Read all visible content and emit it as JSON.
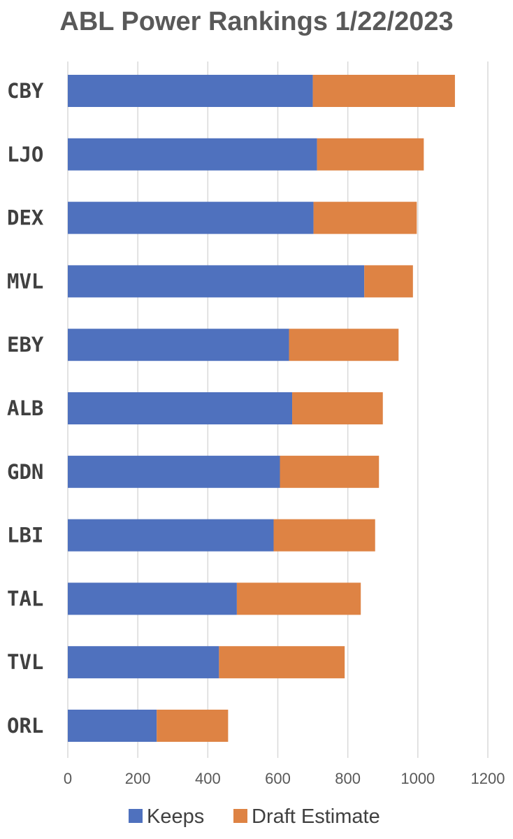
{
  "chart_data": {
    "type": "bar",
    "orientation": "horizontal",
    "stacked": true,
    "title": "ABL Power Rankings 1/22/2023",
    "categories": [
      "CBY",
      "LJO",
      "DEX",
      "MVL",
      "EBY",
      "ALB",
      "GDN",
      "LBI",
      "TAL",
      "TVL",
      "ORL"
    ],
    "series": [
      {
        "name": "Keeps",
        "color": "#4F71BE",
        "values": [
          700,
          712,
          702,
          847,
          632,
          641,
          606,
          588,
          483,
          432,
          254
        ]
      },
      {
        "name": "Draft Estimate",
        "color": "#DE8344",
        "values": [
          406,
          305,
          295,
          139,
          313,
          259,
          283,
          290,
          354,
          359,
          204
        ]
      }
    ],
    "xlim": [
      0,
      1200
    ],
    "xticks": [
      "0",
      "200",
      "400",
      "600",
      "800",
      "1000",
      "1200"
    ],
    "grid": true,
    "legend_position": "bottom"
  }
}
